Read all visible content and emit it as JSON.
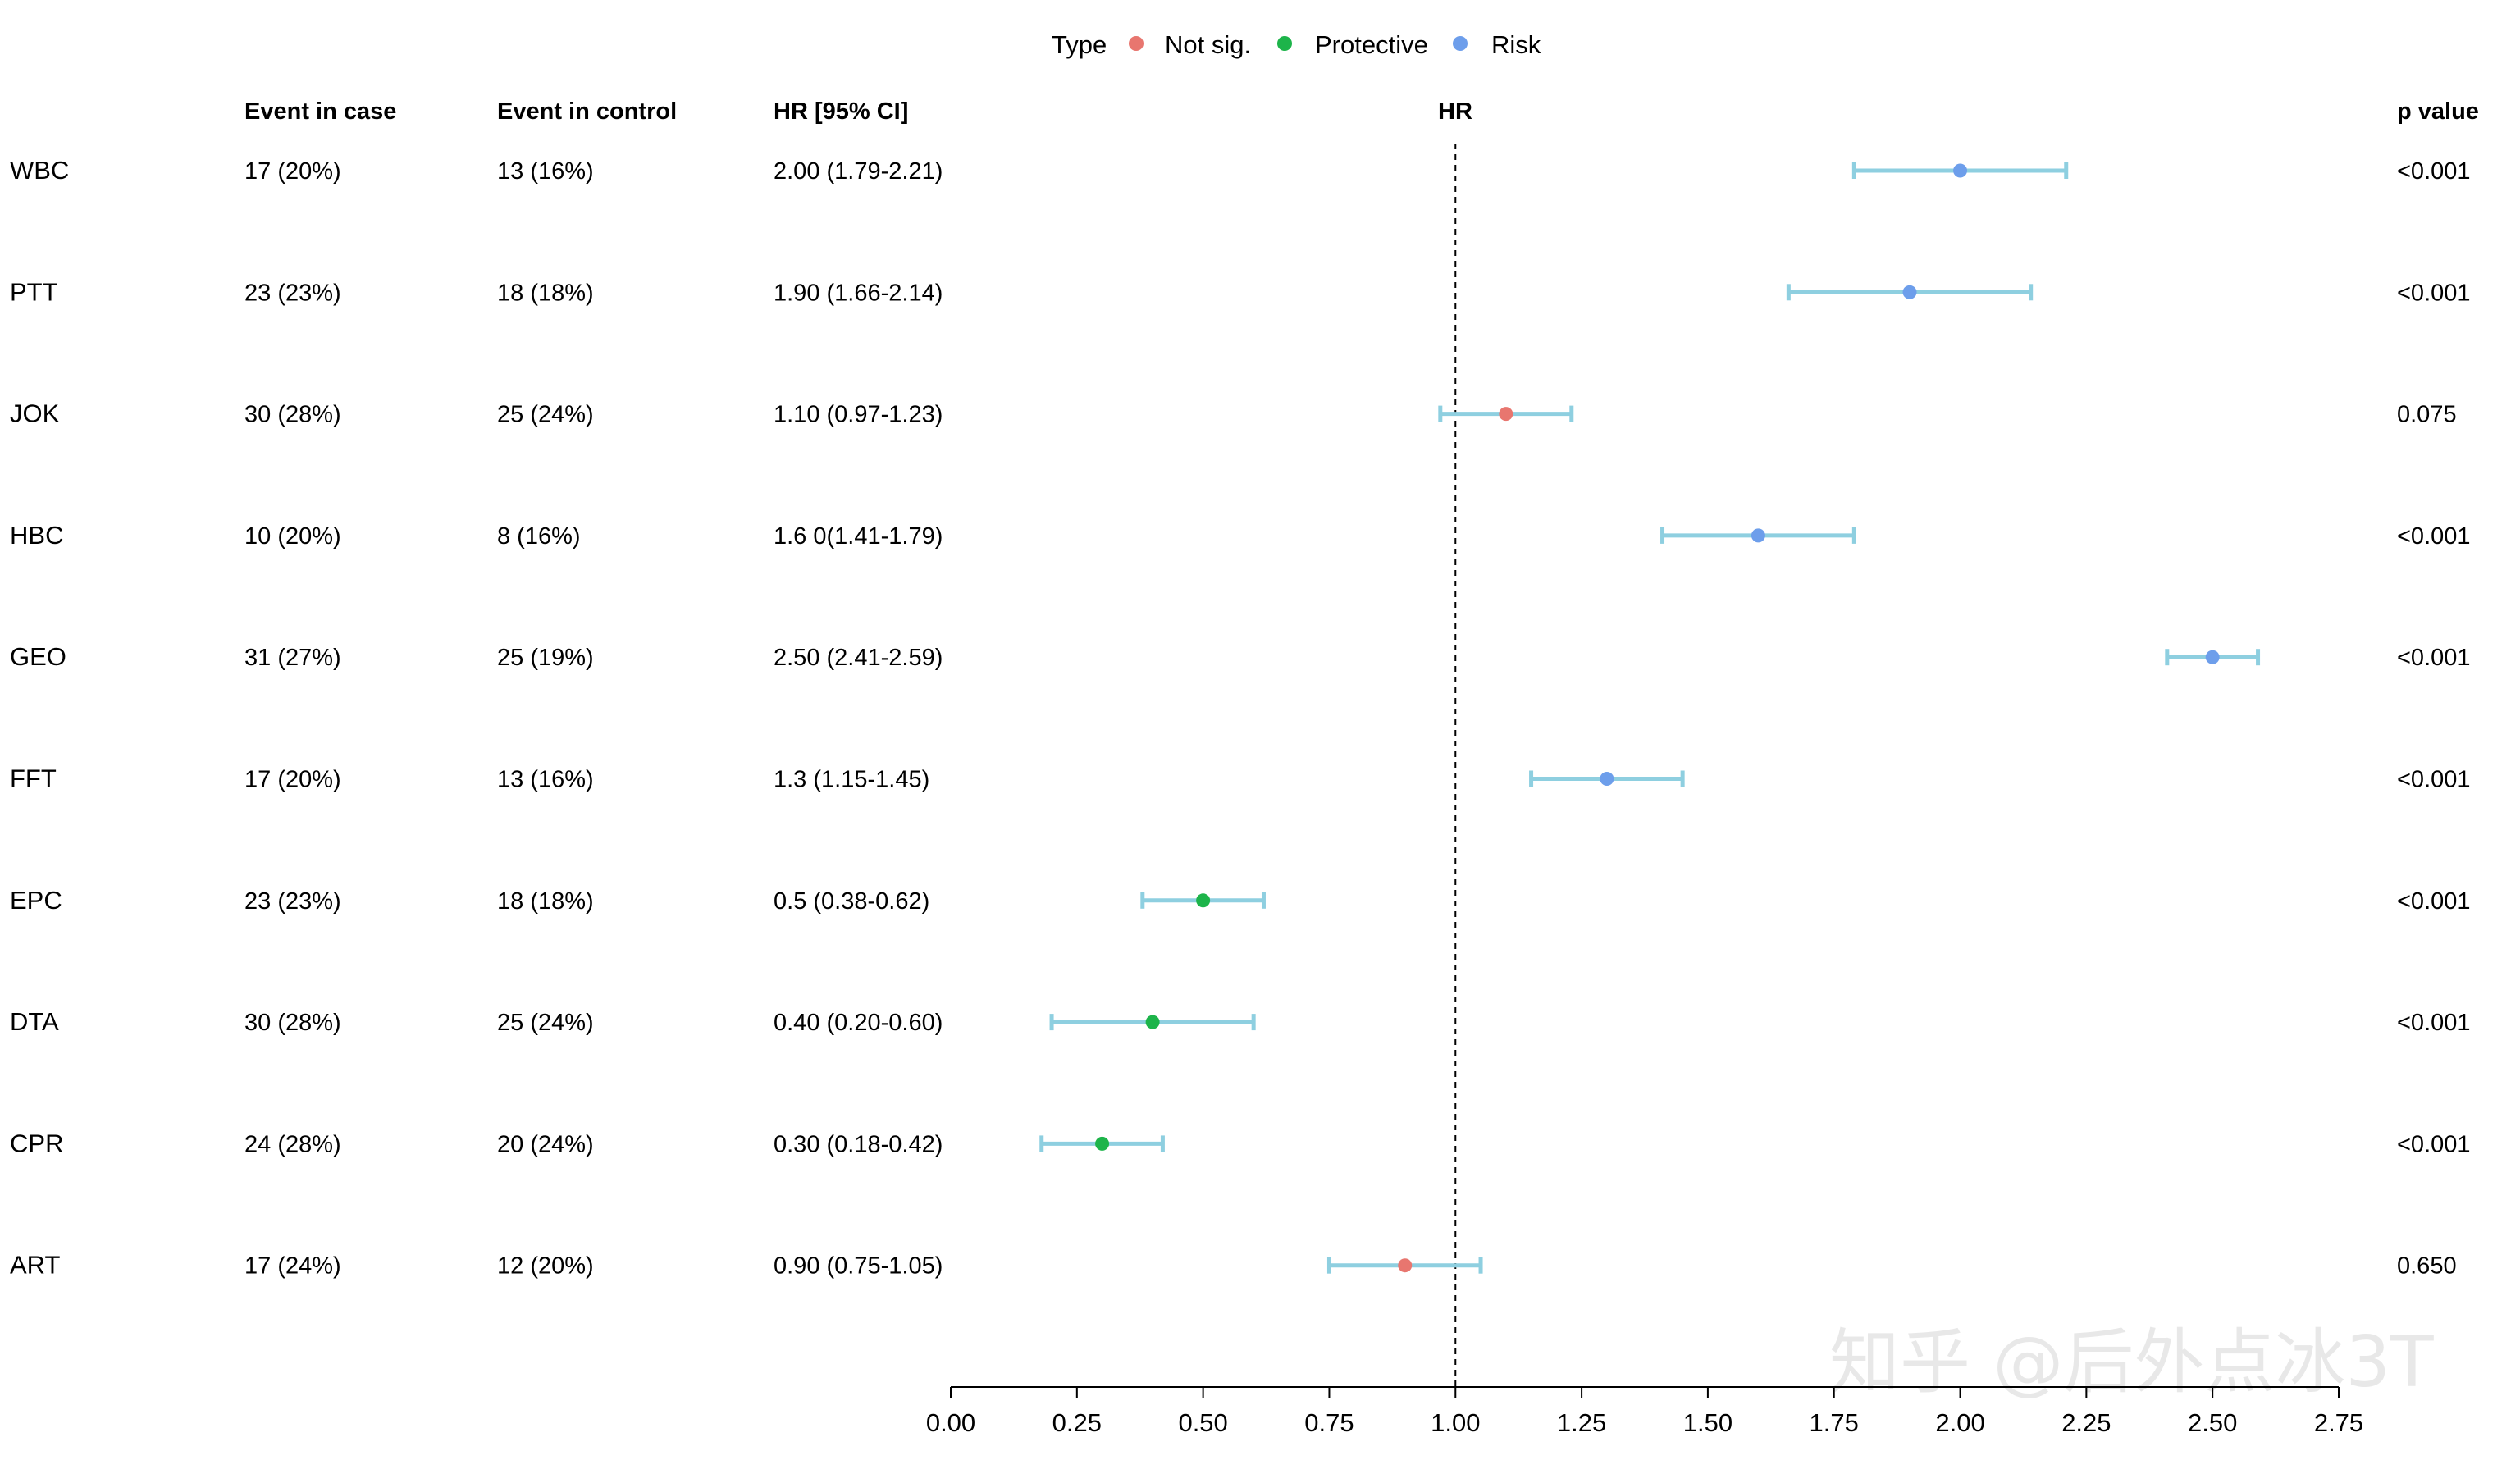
{
  "legend": {
    "title": "Type",
    "items": [
      {
        "label": "Not sig.",
        "color": "#E8766F"
      },
      {
        "label": "Protective",
        "color": "#1DB44A"
      },
      {
        "label": "Risk",
        "color": "#6D9EEB"
      }
    ]
  },
  "columns": {
    "case": "Event in case",
    "control": "Event in control",
    "hr_ci": "HR [95% CI]",
    "plot": "HR",
    "p": "p value"
  },
  "watermark": "知乎 @后外点冰3T",
  "chart_data": {
    "type": "forest",
    "xlabel": "HR",
    "xlim": [
      0,
      2.75
    ],
    "x_ticks": [
      "0.00",
      "0.25",
      "0.50",
      "0.75",
      "1.00",
      "1.25",
      "1.50",
      "1.75",
      "2.00",
      "2.25",
      "2.50",
      "2.75"
    ],
    "reference_line": 1.0,
    "ci_color": "#8ECFE0",
    "rows": [
      {
        "label": "WBC",
        "case": "17 (20%)",
        "control": "13 (16%)",
        "hr_text": "2.00 (1.79-2.21)",
        "hr": 2.0,
        "lo": 1.79,
        "hi": 2.21,
        "p": "<0.001",
        "type": "Risk"
      },
      {
        "label": "PTT",
        "case": "23 (23%)",
        "control": "18 (18%)",
        "hr_text": "1.90 (1.66-2.14)",
        "hr": 1.9,
        "lo": 1.66,
        "hi": 2.14,
        "p": "<0.001",
        "type": "Risk"
      },
      {
        "label": "JOK",
        "case": "30 (28%)",
        "control": "25 (24%)",
        "hr_text": "1.10 (0.97-1.23)",
        "hr": 1.1,
        "lo": 0.97,
        "hi": 1.23,
        "p": "0.075",
        "type": "Not sig."
      },
      {
        "label": "HBC",
        "case": "10 (20%)",
        "control": "8 (16%)",
        "hr_text": "1.6 0(1.41-1.79)",
        "hr": 1.6,
        "lo": 1.41,
        "hi": 1.79,
        "p": "<0.001",
        "type": "Risk"
      },
      {
        "label": "GEO",
        "case": "31 (27%)",
        "control": "25 (19%)",
        "hr_text": "2.50 (2.41-2.59)",
        "hr": 2.5,
        "lo": 2.41,
        "hi": 2.59,
        "p": "<0.001",
        "type": "Risk"
      },
      {
        "label": "FFT",
        "case": "17 (20%)",
        "control": "13 (16%)",
        "hr_text": "1.3 (1.15-1.45)",
        "hr": 1.3,
        "lo": 1.15,
        "hi": 1.45,
        "p": "<0.001",
        "type": "Risk"
      },
      {
        "label": "EPC",
        "case": "23 (23%)",
        "control": "18 (18%)",
        "hr_text": "0.5 (0.38-0.62)",
        "hr": 0.5,
        "lo": 0.38,
        "hi": 0.62,
        "p": "<0.001",
        "type": "Protective"
      },
      {
        "label": "DTA",
        "case": "30 (28%)",
        "control": "25 (24%)",
        "hr_text": "0.40 (0.20-0.60)",
        "hr": 0.4,
        "lo": 0.2,
        "hi": 0.6,
        "p": "<0.001",
        "type": "Protective"
      },
      {
        "label": "CPR",
        "case": "24 (28%)",
        "control": "20 (24%)",
        "hr_text": "0.30 (0.18-0.42)",
        "hr": 0.3,
        "lo": 0.18,
        "hi": 0.42,
        "p": "<0.001",
        "type": "Protective"
      },
      {
        "label": "ART",
        "case": "17 (24%)",
        "control": "12 (20%)",
        "hr_text": "0.90 (0.75-1.05)",
        "hr": 0.9,
        "lo": 0.75,
        "hi": 1.05,
        "p": "0.650",
        "type": "Not sig."
      }
    ]
  }
}
